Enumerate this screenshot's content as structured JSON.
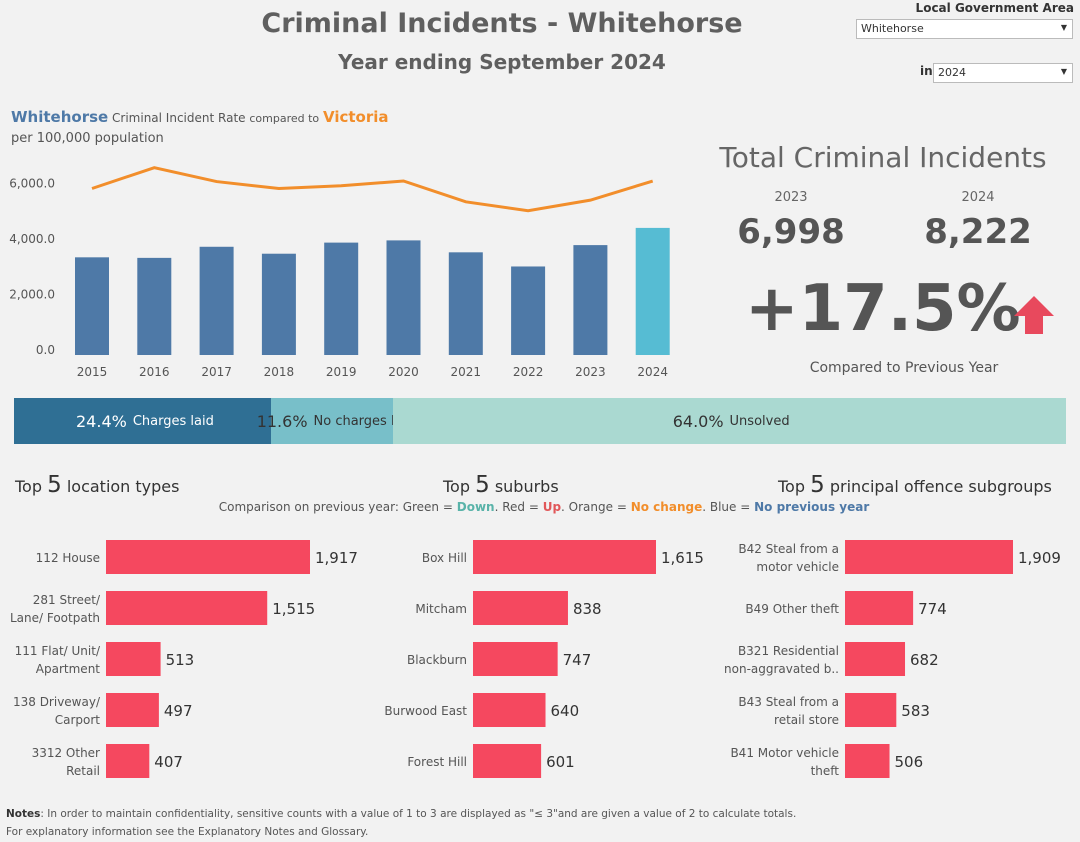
{
  "header": {
    "title": "Criminal Incidents - Whitehorse",
    "subtitle": "Year ending September 2024"
  },
  "filters": {
    "lga_label": "Local Government Area",
    "lga_value": "Whitehorse",
    "year_prefix": "in",
    "year_value": "2024"
  },
  "rate_chart": {
    "title_lga": "Whitehorse",
    "title_mid": "Criminal Incident Rate",
    "title_compared": "compared to",
    "title_state": "Victoria",
    "subtitle": "per 100,000 population"
  },
  "total_incidents": {
    "title": "Total Criminal Incidents",
    "prev_year": "2023",
    "prev_value": "6,998",
    "curr_year": "2024",
    "curr_value": "8,222",
    "change": "+17.5%",
    "change_label": "Compared to Previous Year",
    "arrow_icon": "up-arrow-icon",
    "arrow_color": "#e8495d"
  },
  "outcomes": {
    "charges_pct": "24.4%",
    "charges_label": "Charges laid",
    "charges_value": 24.4,
    "nocharges_pct": "11.6%",
    "nocharges_label": "No charges laid",
    "nocharges_value": 11.6,
    "unsolved_pct": "64.0%",
    "unsolved_label": "Unsolved",
    "unsolved_value": 64.0
  },
  "sections": {
    "location_prefix": "Top",
    "location_num": "5",
    "location_suffix": "location types",
    "suburb_prefix": "Top",
    "suburb_num": "5",
    "suburb_suffix": "suburbs",
    "offence_prefix": "Top",
    "offence_num": "5",
    "offence_suffix": "principal offence subgroups"
  },
  "comparison": {
    "intro": "Comparison on previous year: Green =",
    "down": "Down",
    "red_text": ". Red =",
    "up": "Up",
    "orange_text": ". Orange =",
    "nochange": "No change",
    "blue_text": ". Blue =",
    "noprev": "No previous year"
  },
  "notes": {
    "label": "Notes",
    "line1": ":  In order to maintain confidentiality, sensitive counts with a value of 1 to 3  are displayed as \"≤ 3\"and are given a value of 2 to calculate totals.",
    "line2": "For explanatory information see the Explanatory Notes and Glossary."
  },
  "colors": {
    "whitehorse_bar": "#4e79a7",
    "current_bar": "#56bcd3",
    "victoria_line": "#f28e2b",
    "up_bar": "#f5485f"
  },
  "chart_data": [
    {
      "type": "bar",
      "title": "Whitehorse Criminal Incident Rate compared to Victoria",
      "subtitle": "per 100,000 population",
      "categories": [
        "2015",
        "2016",
        "2017",
        "2018",
        "2019",
        "2020",
        "2021",
        "2022",
        "2023",
        "2024"
      ],
      "series": [
        {
          "name": "Whitehorse",
          "type": "bar",
          "values": [
            3520,
            3500,
            3900,
            3650,
            4050,
            4130,
            3700,
            3190,
            3960,
            4580
          ]
        },
        {
          "name": "Victoria",
          "type": "line",
          "values": [
            6000,
            6750,
            6250,
            6000,
            6100,
            6270,
            5520,
            5200,
            5580,
            6270
          ]
        }
      ],
      "yticks": [
        "0.0",
        "2,000.0",
        "4,000.0",
        "6,000.0"
      ],
      "ytick_values": [
        0,
        2000,
        4000,
        6000
      ],
      "ylim": [
        0,
        7000
      ],
      "grid": false
    },
    {
      "type": "bar",
      "orientation": "horizontal",
      "categories": [
        "112 House",
        "281 Street/ Lane/ Footpath",
        "111 Flat/ Unit/ Apartment",
        "138 Driveway/ Carport",
        "3312 Other Retail"
      ],
      "category_lines": [
        [
          "112 House"
        ],
        [
          "281 Street/",
          "Lane/ Footpath"
        ],
        [
          "111 Flat/ Unit/",
          "Apartment"
        ],
        [
          "138 Driveway/",
          "Carport"
        ],
        [
          "3312 Other",
          "Retail"
        ]
      ],
      "values": [
        1917,
        1515,
        513,
        497,
        407
      ],
      "labels": [
        "1,917",
        "1,515",
        "513",
        "497",
        "407"
      ]
    },
    {
      "type": "bar",
      "orientation": "horizontal",
      "categories": [
        "Box Hill",
        "Mitcham",
        "Blackburn",
        "Burwood East",
        "Forest Hill"
      ],
      "category_lines": [
        [
          "Box Hill"
        ],
        [
          "Mitcham"
        ],
        [
          "Blackburn"
        ],
        [
          "Burwood East"
        ],
        [
          "Forest Hill"
        ]
      ],
      "values": [
        1615,
        838,
        747,
        640,
        601
      ],
      "labels": [
        "1,615",
        "838",
        "747",
        "640",
        "601"
      ]
    },
    {
      "type": "bar",
      "orientation": "horizontal",
      "categories": [
        "B42 Steal from a motor vehicle",
        "B49 Other theft",
        "B321 Residential non-aggravated b..",
        "B43 Steal from a retail store",
        "B41 Motor vehicle theft"
      ],
      "category_lines": [
        [
          "B42 Steal from a",
          "motor vehicle"
        ],
        [
          "B49 Other theft"
        ],
        [
          "B321 Residential",
          "non-aggravated b.."
        ],
        [
          "B43 Steal from a",
          "retail store"
        ],
        [
          "B41 Motor vehicle",
          "theft"
        ]
      ],
      "values": [
        1909,
        774,
        682,
        583,
        506
      ],
      "labels": [
        "1,909",
        "774",
        "682",
        "583",
        "506"
      ]
    }
  ]
}
